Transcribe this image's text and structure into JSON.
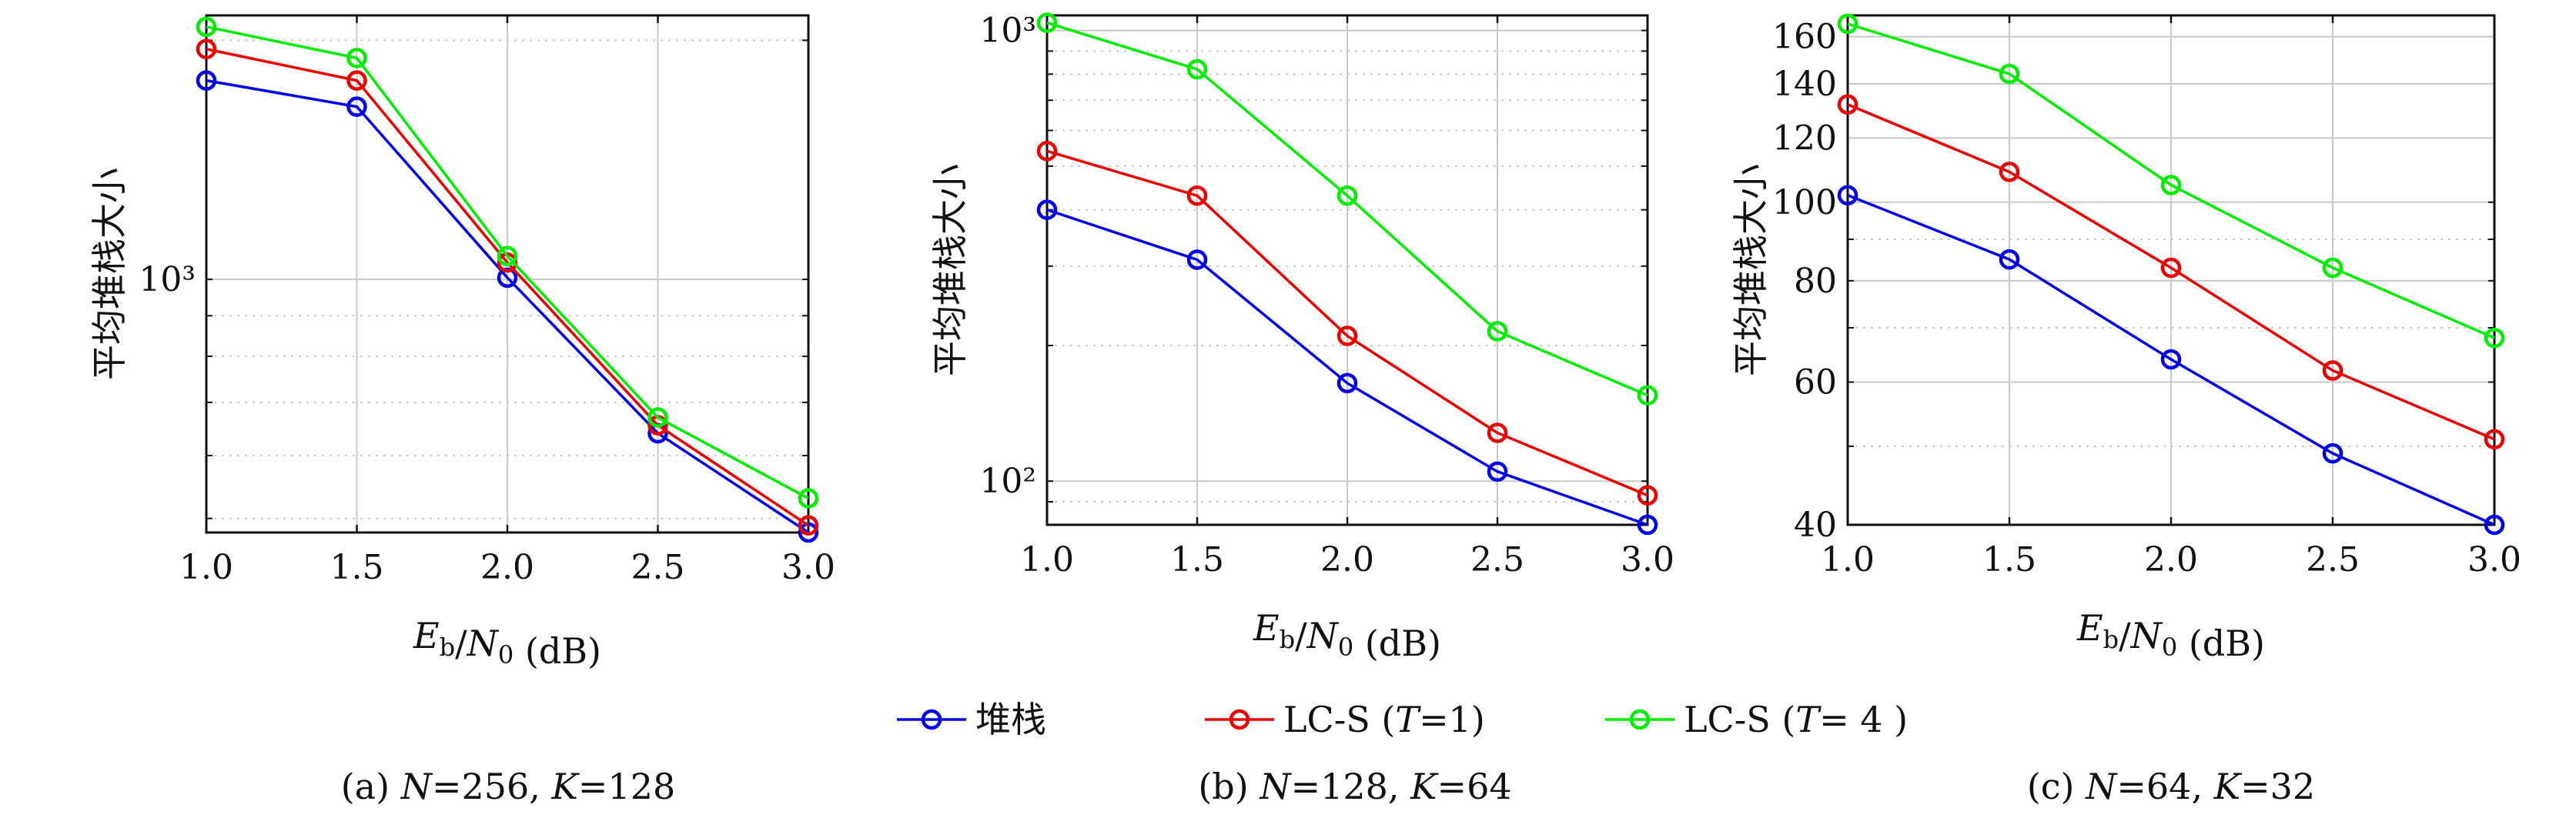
{
  "legend": [
    {
      "label": "堆栈",
      "color": "#0000ee"
    },
    {
      "label": "LC-S (T=1)",
      "color": "#ee0000"
    },
    {
      "label": "LC-S (T= 4 )",
      "color": "#00ee00"
    }
  ],
  "chart_data": [
    {
      "type": "line",
      "caption": "(a) N=256, K=128",
      "xlabel": "Eb/N0 (dB)",
      "ylabel": "平均堆栈大小",
      "yscale": "log",
      "xlim": [
        1.0,
        3.0
      ],
      "ylim": [
        480,
        2150
      ],
      "x": [
        1.0,
        1.5,
        2.0,
        2.5,
        3.0
      ],
      "x_ticks": [
        "1.0",
        "1.5",
        "2.0",
        "2.5",
        "3.0"
      ],
      "y_ticks": [
        {
          "value": 1000,
          "label": "10³"
        }
      ],
      "grid": true,
      "series": [
        {
          "name": "堆栈",
          "color": "#0000ee",
          "values": [
            1780,
            1650,
            1005,
            640,
            480
          ]
        },
        {
          "name": "LC-S (T=1)",
          "color": "#ee0000",
          "values": [
            1950,
            1780,
            1050,
            655,
            490
          ]
        },
        {
          "name": "LC-S (T= 4 )",
          "color": "#00ee00",
          "values": [
            2080,
            1900,
            1070,
            670,
            530
          ]
        }
      ]
    },
    {
      "type": "line",
      "caption": "(b) N=128, K=64",
      "xlabel": "Eb/N0 (dB)",
      "ylabel": "平均堆栈大小",
      "yscale": "log",
      "xlim": [
        1.0,
        3.0
      ],
      "ylim": [
        80,
        1080
      ],
      "x": [
        1.0,
        1.5,
        2.0,
        2.5,
        3.0
      ],
      "x_ticks": [
        "1.0",
        "1.5",
        "2.0",
        "2.5",
        "3.0"
      ],
      "y_ticks": [
        {
          "value": 100,
          "label": "10²"
        },
        {
          "value": 1000,
          "label": "10³"
        }
      ],
      "grid": true,
      "series": [
        {
          "name": "堆栈",
          "color": "#0000ee",
          "values": [
            400,
            310,
            165,
            105,
            80
          ]
        },
        {
          "name": "LC-S (T=1)",
          "color": "#ee0000",
          "values": [
            540,
            430,
            210,
            128,
            93
          ]
        },
        {
          "name": "LC-S (T= 4 )",
          "color": "#00ee00",
          "values": [
            1040,
            820,
            430,
            215,
            155
          ]
        }
      ]
    },
    {
      "type": "line",
      "caption": "(c) N=64, K=32",
      "xlabel": "Eb/N0 (dB)",
      "ylabel": "平均堆栈大小",
      "yscale": "log",
      "xlim": [
        1.0,
        3.0
      ],
      "ylim": [
        40,
        170
      ],
      "x": [
        1.0,
        1.5,
        2.0,
        2.5,
        3.0
      ],
      "x_ticks": [
        "1.0",
        "1.5",
        "2.0",
        "2.5",
        "3.0"
      ],
      "y_ticks": [
        {
          "value": 40,
          "label": "40"
        },
        {
          "value": 60,
          "label": "60"
        },
        {
          "value": 80,
          "label": "80"
        },
        {
          "value": 100,
          "label": "100"
        },
        {
          "value": 120,
          "label": "120"
        },
        {
          "value": 140,
          "label": "140"
        },
        {
          "value": 160,
          "label": "160"
        }
      ],
      "grid": true,
      "series": [
        {
          "name": "堆栈",
          "color": "#0000ee",
          "values": [
            102,
            85,
            64,
            49,
            40
          ]
        },
        {
          "name": "LC-S (T=1)",
          "color": "#ee0000",
          "values": [
            132,
            109,
            83,
            62,
            51
          ]
        },
        {
          "name": "LC-S (T= 4 )",
          "color": "#00ee00",
          "values": [
            166,
            144,
            105,
            83,
            68
          ]
        }
      ]
    }
  ]
}
